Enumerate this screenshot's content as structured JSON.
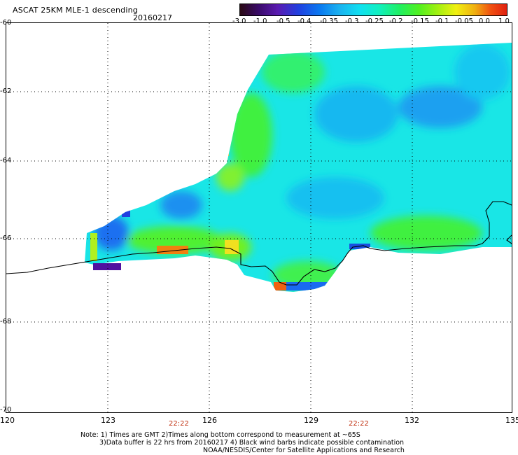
{
  "header": {
    "title": "ASCAT 25KM MLE-1 descending",
    "date": "20160217"
  },
  "colorbar": {
    "ticks": [
      "-3.0",
      "-1.0",
      "-0.5",
      "-0.4",
      "-0.35",
      "-0.3",
      "-0.25",
      "-0.2",
      "-0.15",
      "-0.1",
      "-0.05",
      "0.0",
      "1.0"
    ]
  },
  "axes": {
    "lat_labels": [
      "-60",
      "-62",
      "-64",
      "-66",
      "-68",
      "-70"
    ],
    "lon_labels": [
      "120",
      "123",
      "126",
      "129",
      "132",
      "135"
    ]
  },
  "times": [
    "22:22",
    "22:22"
  ],
  "notes": {
    "line1": "Note: 1) Times are GMT 2)Times along bottom correspond to measurement at ~65S",
    "line2": "3)Data buffer is 22 hrs from 20160217 4) Black wind barbs indicate possible contamination",
    "line3": "NOAA/NESDIS/Center for Satellite Applications and Research"
  }
}
